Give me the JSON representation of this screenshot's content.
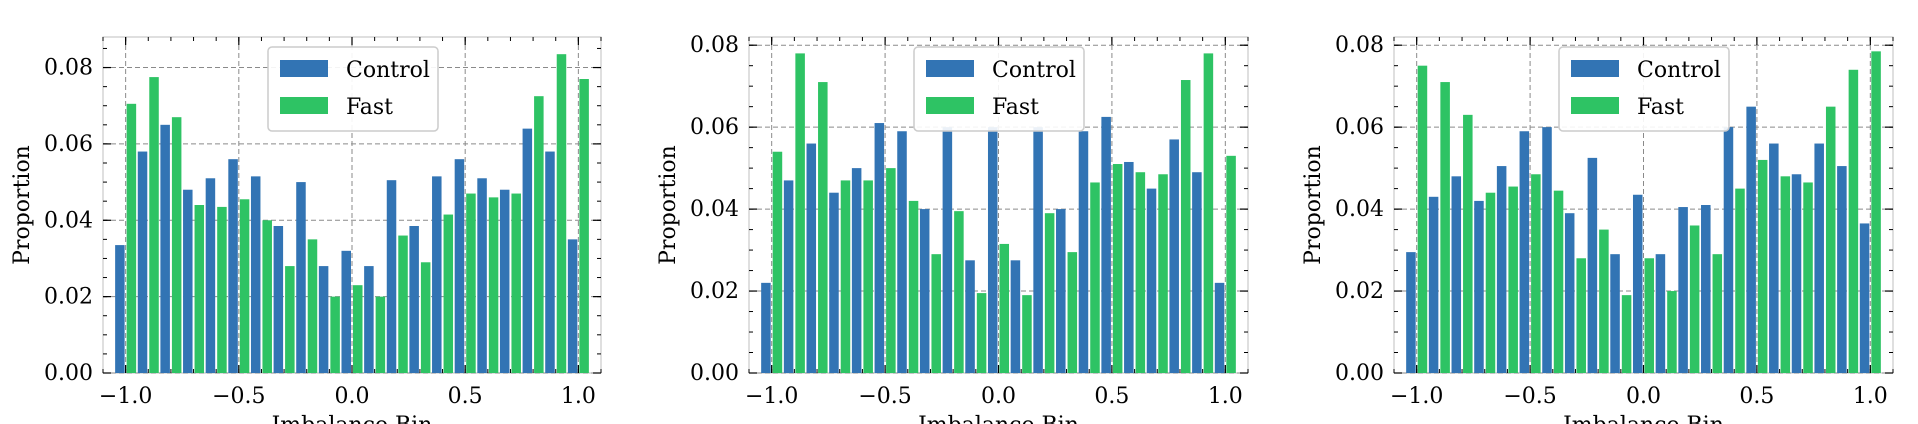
{
  "colors": {
    "control": "#3274b4",
    "fast": "#2ec364",
    "grid": "#8a8a8a",
    "axis": "#bfbfbf"
  },
  "chart_data": [
    {
      "type": "bar",
      "xlabel": "Imbalance Bin",
      "ylabel": "Proportion",
      "grid": true,
      "legend": "upper-center",
      "xlim": [
        -1.1,
        1.1
      ],
      "ylim": [
        0,
        0.088
      ],
      "xticks": [
        "−1.0",
        "−0.5",
        "0.0",
        "0.5",
        "1.0"
      ],
      "yticks": [
        "0.00",
        "0.02",
        "0.04",
        "0.06",
        "0.08"
      ],
      "x": [
        -1.0,
        -0.9,
        -0.8,
        -0.7,
        -0.6,
        -0.5,
        -0.4,
        -0.3,
        -0.2,
        -0.1,
        0.0,
        0.1,
        0.2,
        0.3,
        0.4,
        0.5,
        0.6,
        0.7,
        0.8,
        0.9,
        1.0
      ],
      "series": [
        {
          "name": "Control",
          "values": [
            0.0335,
            0.058,
            0.065,
            0.048,
            0.051,
            0.056,
            0.0515,
            0.0385,
            0.05,
            0.028,
            0.032,
            0.028,
            0.0505,
            0.0385,
            0.0515,
            0.056,
            0.051,
            0.048,
            0.064,
            0.058,
            0.035
          ]
        },
        {
          "name": "Fast",
          "values": [
            0.0705,
            0.0775,
            0.067,
            0.044,
            0.0435,
            0.0455,
            0.04,
            0.028,
            0.035,
            0.02,
            0.023,
            0.02,
            0.036,
            0.029,
            0.0415,
            0.047,
            0.046,
            0.047,
            0.0725,
            0.0835,
            0.077
          ]
        }
      ]
    },
    {
      "type": "bar",
      "xlabel": "Imbalance Bin",
      "ylabel": "Proportion",
      "grid": true,
      "legend": "upper-center",
      "xlim": [
        -1.1,
        1.1
      ],
      "ylim": [
        0,
        0.082
      ],
      "xticks": [
        "−1.0",
        "−0.5",
        "0.0",
        "0.5",
        "1.0"
      ],
      "yticks": [
        "0.00",
        "0.02",
        "0.04",
        "0.06",
        "0.08"
      ],
      "x": [
        -1.0,
        -0.9,
        -0.8,
        -0.7,
        -0.6,
        -0.5,
        -0.4,
        -0.3,
        -0.2,
        -0.1,
        0.0,
        0.1,
        0.2,
        0.3,
        0.4,
        0.5,
        0.6,
        0.7,
        0.8,
        0.9,
        1.0
      ],
      "series": [
        {
          "name": "Control",
          "values": [
            0.022,
            0.047,
            0.056,
            0.044,
            0.05,
            0.061,
            0.059,
            0.04,
            0.06,
            0.0275,
            0.06,
            0.0275,
            0.06,
            0.04,
            0.059,
            0.0625,
            0.0515,
            0.045,
            0.057,
            0.049,
            0.022
          ]
        },
        {
          "name": "Fast",
          "values": [
            0.054,
            0.078,
            0.071,
            0.047,
            0.047,
            0.05,
            0.042,
            0.029,
            0.0395,
            0.0195,
            0.0315,
            0.019,
            0.039,
            0.0295,
            0.0465,
            0.051,
            0.049,
            0.0485,
            0.0715,
            0.078,
            0.053
          ]
        }
      ]
    },
    {
      "type": "bar",
      "xlabel": "Imbalance Bin",
      "ylabel": "Proportion",
      "grid": true,
      "legend": "upper-center",
      "xlim": [
        -1.1,
        1.1
      ],
      "ylim": [
        0,
        0.082
      ],
      "xticks": [
        "−1.0",
        "−0.5",
        "0.0",
        "0.5",
        "1.0"
      ],
      "yticks": [
        "0.00",
        "0.02",
        "0.04",
        "0.06",
        "0.08"
      ],
      "x": [
        -1.0,
        -0.9,
        -0.8,
        -0.7,
        -0.6,
        -0.5,
        -0.4,
        -0.3,
        -0.2,
        -0.1,
        0.0,
        0.1,
        0.2,
        0.3,
        0.4,
        0.5,
        0.6,
        0.7,
        0.8,
        0.9,
        1.0
      ],
      "series": [
        {
          "name": "Control",
          "values": [
            0.0295,
            0.043,
            0.048,
            0.042,
            0.0505,
            0.059,
            0.06,
            0.039,
            0.0525,
            0.029,
            0.0435,
            0.029,
            0.0405,
            0.041,
            0.06,
            0.065,
            0.056,
            0.0485,
            0.056,
            0.0505,
            0.0365
          ]
        },
        {
          "name": "Fast",
          "values": [
            0.075,
            0.071,
            0.063,
            0.044,
            0.0455,
            0.0485,
            0.0445,
            0.028,
            0.035,
            0.019,
            0.028,
            0.02,
            0.036,
            0.029,
            0.045,
            0.052,
            0.048,
            0.0465,
            0.065,
            0.074,
            0.0785
          ]
        }
      ]
    }
  ]
}
